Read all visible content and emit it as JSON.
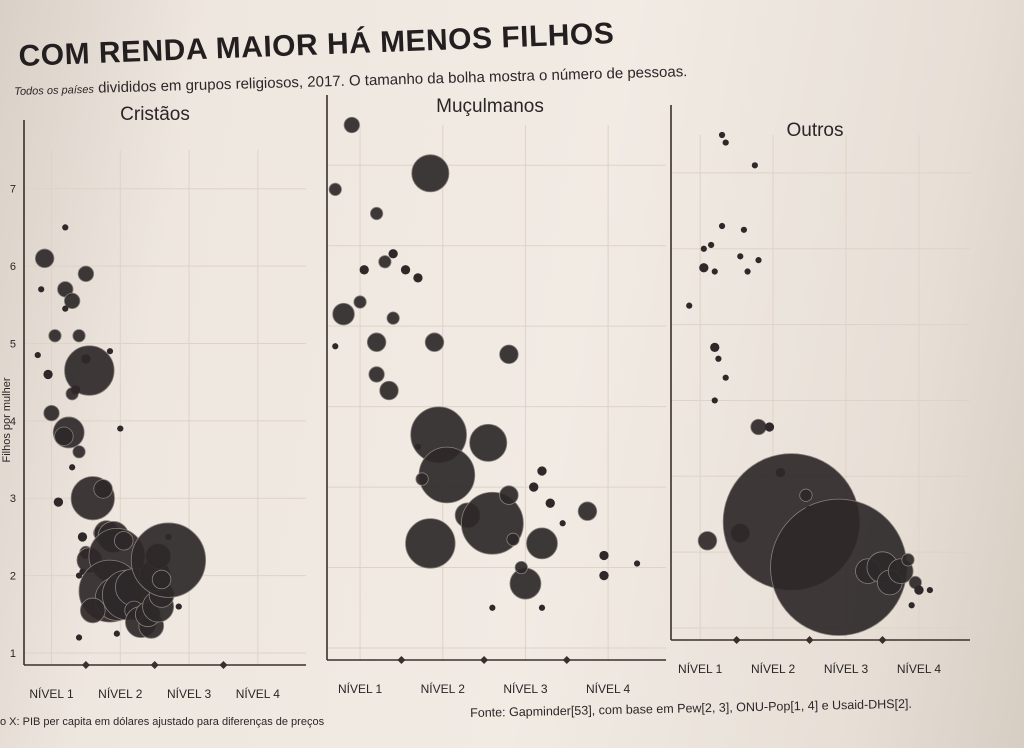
{
  "title": "COM RENDA MAIOR HÁ MENOS FILHOS",
  "subtitle_prefix": "Todos os países",
  "subtitle_rest": " divididos em grupos religiosos, 2017. O tamanho da bolha mostra o número de pessoas.",
  "footer_left": "o X: PIB per capita em dólares ajustado para diferenças de preços",
  "footer_right": "Fonte: Gapminder[53], com base em Pew[2, 3], ONU-Pop[1, 4] e Usaid-DHS[2].",
  "colors": {
    "bubble": "#2e2829",
    "axis": "#3a2f2c",
    "grid": "#ddd3c8",
    "text": "#2a2526"
  },
  "chart_data": [
    {
      "type": "scatter",
      "title": "Cristãos",
      "ylabel": "Filhos por mulher",
      "ylim": [
        1,
        7.5
      ],
      "yticks": [
        "1",
        "2",
        "3",
        "4",
        "5",
        "6",
        "7"
      ],
      "xticks": [
        "NÍVEL 1",
        "NÍVEL 2",
        "NÍVEL 3",
        "NÍVEL 4"
      ],
      "xlim": [
        0.6,
        4.7
      ],
      "points": [
        {
          "x": 0.9,
          "y": 6.1,
          "s": 3
        },
        {
          "x": 0.85,
          "y": 5.7,
          "s": 1
        },
        {
          "x": 1.2,
          "y": 6.5,
          "s": 1
        },
        {
          "x": 1.2,
          "y": 5.7,
          "s": 2.5
        },
        {
          "x": 1.3,
          "y": 5.55,
          "s": 2.5
        },
        {
          "x": 1.2,
          "y": 5.45,
          "s": 1
        },
        {
          "x": 1.5,
          "y": 5.9,
          "s": 2.5
        },
        {
          "x": 1.05,
          "y": 5.1,
          "s": 2
        },
        {
          "x": 1.4,
          "y": 5.1,
          "s": 2
        },
        {
          "x": 0.8,
          "y": 4.85,
          "s": 1
        },
        {
          "x": 0.95,
          "y": 4.6,
          "s": 1.5
        },
        {
          "x": 1.55,
          "y": 4.65,
          "s": 8
        },
        {
          "x": 1.5,
          "y": 4.8,
          "s": 1.5
        },
        {
          "x": 1.3,
          "y": 4.35,
          "s": 2
        },
        {
          "x": 1.35,
          "y": 4.4,
          "s": 1.5
        },
        {
          "x": 1.0,
          "y": 4.1,
          "s": 2.5
        },
        {
          "x": 1.25,
          "y": 3.85,
          "s": 5
        },
        {
          "x": 1.18,
          "y": 3.8,
          "s": 3
        },
        {
          "x": 1.4,
          "y": 3.6,
          "s": 2
        },
        {
          "x": 1.3,
          "y": 3.4,
          "s": 1
        },
        {
          "x": 1.85,
          "y": 4.9,
          "s": 1
        },
        {
          "x": 2.0,
          "y": 3.9,
          "s": 1
        },
        {
          "x": 1.1,
          "y": 2.95,
          "s": 1.5
        },
        {
          "x": 1.6,
          "y": 3.0,
          "s": 7
        },
        {
          "x": 1.75,
          "y": 3.12,
          "s": 3
        },
        {
          "x": 1.45,
          "y": 2.5,
          "s": 1.5
        },
        {
          "x": 1.5,
          "y": 2.3,
          "s": 2
        },
        {
          "x": 1.55,
          "y": 2.2,
          "s": 4
        },
        {
          "x": 1.45,
          "y": 2.05,
          "s": 1
        },
        {
          "x": 1.7,
          "y": 2.55,
          "s": 2
        },
        {
          "x": 1.8,
          "y": 2.55,
          "s": 4
        },
        {
          "x": 1.9,
          "y": 2.5,
          "s": 5
        },
        {
          "x": 1.95,
          "y": 2.25,
          "s": 9
        },
        {
          "x": 2.05,
          "y": 2.45,
          "s": 3
        },
        {
          "x": 1.85,
          "y": 1.8,
          "s": 10
        },
        {
          "x": 1.95,
          "y": 1.7,
          "s": 7
        },
        {
          "x": 2.1,
          "y": 1.75,
          "s": 8
        },
        {
          "x": 2.2,
          "y": 1.85,
          "s": 6
        },
        {
          "x": 1.6,
          "y": 1.55,
          "s": 4
        },
        {
          "x": 2.2,
          "y": 1.55,
          "s": 3
        },
        {
          "x": 2.3,
          "y": 1.4,
          "s": 5
        },
        {
          "x": 2.45,
          "y": 1.35,
          "s": 4
        },
        {
          "x": 2.4,
          "y": 1.5,
          "s": 4
        },
        {
          "x": 2.55,
          "y": 1.6,
          "s": 5
        },
        {
          "x": 2.6,
          "y": 1.75,
          "s": 4
        },
        {
          "x": 2.5,
          "y": 2.0,
          "s": 5
        },
        {
          "x": 2.55,
          "y": 2.25,
          "s": 4
        },
        {
          "x": 2.7,
          "y": 2.2,
          "s": 12
        },
        {
          "x": 2.6,
          "y": 1.95,
          "s": 3
        },
        {
          "x": 1.4,
          "y": 1.2,
          "s": 1
        },
        {
          "x": 1.95,
          "y": 1.25,
          "s": 1
        },
        {
          "x": 2.85,
          "y": 1.6,
          "s": 1
        },
        {
          "x": 2.7,
          "y": 2.5,
          "s": 1
        },
        {
          "x": 1.4,
          "y": 2.0,
          "s": 1
        }
      ]
    },
    {
      "type": "scatter",
      "title": "Muçulmanos",
      "ylim": [
        1,
        7.5
      ],
      "xticks": [
        "NÍVEL 1",
        "NÍVEL 2",
        "NÍVEL 3",
        "NÍVEL 4"
      ],
      "xlim": [
        0.6,
        4.7
      ],
      "points": [
        {
          "x": 0.9,
          "y": 7.5,
          "s": 2.5
        },
        {
          "x": 0.7,
          "y": 6.7,
          "s": 2
        },
        {
          "x": 1.2,
          "y": 6.4,
          "s": 2
        },
        {
          "x": 1.85,
          "y": 6.9,
          "s": 6
        },
        {
          "x": 1.05,
          "y": 5.7,
          "s": 1.5
        },
        {
          "x": 1.3,
          "y": 5.8,
          "s": 2
        },
        {
          "x": 1.4,
          "y": 5.9,
          "s": 1.5
        },
        {
          "x": 1.55,
          "y": 5.7,
          "s": 1.5
        },
        {
          "x": 1.7,
          "y": 5.6,
          "s": 1.5
        },
        {
          "x": 0.8,
          "y": 5.15,
          "s": 3.5
        },
        {
          "x": 1.0,
          "y": 5.3,
          "s": 2
        },
        {
          "x": 1.4,
          "y": 5.1,
          "s": 2
        },
        {
          "x": 1.2,
          "y": 4.8,
          "s": 3
        },
        {
          "x": 1.9,
          "y": 4.8,
          "s": 3
        },
        {
          "x": 1.2,
          "y": 4.4,
          "s": 2.5
        },
        {
          "x": 1.35,
          "y": 4.2,
          "s": 3
        },
        {
          "x": 2.8,
          "y": 4.65,
          "s": 3
        },
        {
          "x": 1.95,
          "y": 3.65,
          "s": 9
        },
        {
          "x": 2.55,
          "y": 3.55,
          "s": 6
        },
        {
          "x": 2.05,
          "y": 3.15,
          "s": 9
        },
        {
          "x": 1.75,
          "y": 3.1,
          "s": 2
        },
        {
          "x": 1.85,
          "y": 2.3,
          "s": 8
        },
        {
          "x": 2.3,
          "y": 2.65,
          "s": 4
        },
        {
          "x": 2.6,
          "y": 2.55,
          "s": 10
        },
        {
          "x": 2.8,
          "y": 2.9,
          "s": 3
        },
        {
          "x": 3.2,
          "y": 2.3,
          "s": 5
        },
        {
          "x": 2.85,
          "y": 2.35,
          "s": 2
        },
        {
          "x": 3.0,
          "y": 1.8,
          "s": 5
        },
        {
          "x": 3.1,
          "y": 3.0,
          "s": 1.5
        },
        {
          "x": 3.3,
          "y": 2.8,
          "s": 1.5
        },
        {
          "x": 3.45,
          "y": 2.55,
          "s": 1
        },
        {
          "x": 3.75,
          "y": 2.7,
          "s": 3
        },
        {
          "x": 3.95,
          "y": 2.15,
          "s": 1.5
        },
        {
          "x": 3.95,
          "y": 1.9,
          "s": 1.5
        },
        {
          "x": 2.95,
          "y": 2.0,
          "s": 2
        },
        {
          "x": 3.2,
          "y": 3.2,
          "s": 1.5
        },
        {
          "x": 4.35,
          "y": 2.05,
          "s": 1
        },
        {
          "x": 1.7,
          "y": 3.5,
          "s": 1
        },
        {
          "x": 2.6,
          "y": 1.5,
          "s": 1
        },
        {
          "x": 3.2,
          "y": 1.5,
          "s": 1
        },
        {
          "x": 0.7,
          "y": 4.75,
          "s": 1
        }
      ]
    },
    {
      "type": "scatter",
      "title": "Outros",
      "ylim": [
        1,
        7.5
      ],
      "xticks": [
        "NÍVEL 1",
        "NÍVEL 2",
        "NÍVEL 3",
        "NÍVEL 4"
      ],
      "xlim": [
        0.6,
        4.7
      ],
      "points": [
        {
          "x": 1.3,
          "y": 7.5,
          "s": 1
        },
        {
          "x": 1.35,
          "y": 7.4,
          "s": 1
        },
        {
          "x": 1.75,
          "y": 7.1,
          "s": 1
        },
        {
          "x": 1.3,
          "y": 6.3,
          "s": 1
        },
        {
          "x": 1.6,
          "y": 6.25,
          "s": 1
        },
        {
          "x": 1.05,
          "y": 6.0,
          "s": 1
        },
        {
          "x": 1.15,
          "y": 6.05,
          "s": 1
        },
        {
          "x": 1.55,
          "y": 5.9,
          "s": 1
        },
        {
          "x": 1.8,
          "y": 5.85,
          "s": 1
        },
        {
          "x": 1.05,
          "y": 5.75,
          "s": 1.5
        },
        {
          "x": 1.2,
          "y": 5.7,
          "s": 1
        },
        {
          "x": 1.65,
          "y": 5.7,
          "s": 1
        },
        {
          "x": 0.85,
          "y": 5.25,
          "s": 1
        },
        {
          "x": 1.2,
          "y": 4.7,
          "s": 1.5
        },
        {
          "x": 1.25,
          "y": 4.55,
          "s": 1
        },
        {
          "x": 1.35,
          "y": 4.3,
          "s": 1
        },
        {
          "x": 1.2,
          "y": 4.0,
          "s": 1
        },
        {
          "x": 1.8,
          "y": 3.65,
          "s": 2.5
        },
        {
          "x": 1.95,
          "y": 3.65,
          "s": 1.5
        },
        {
          "x": 1.1,
          "y": 2.15,
          "s": 3
        },
        {
          "x": 1.55,
          "y": 2.25,
          "s": 3
        },
        {
          "x": 2.25,
          "y": 2.4,
          "s": 22
        },
        {
          "x": 2.9,
          "y": 1.8,
          "s": 22
        },
        {
          "x": 3.3,
          "y": 1.75,
          "s": 4
        },
        {
          "x": 3.5,
          "y": 1.8,
          "s": 5
        },
        {
          "x": 3.6,
          "y": 1.6,
          "s": 4
        },
        {
          "x": 3.75,
          "y": 1.75,
          "s": 4
        },
        {
          "x": 3.85,
          "y": 1.9,
          "s": 2
        },
        {
          "x": 2.45,
          "y": 2.75,
          "s": 2
        },
        {
          "x": 2.1,
          "y": 3.05,
          "s": 1.5
        },
        {
          "x": 2.5,
          "y": 2.55,
          "s": 1.5
        },
        {
          "x": 3.95,
          "y": 1.6,
          "s": 2
        },
        {
          "x": 4.0,
          "y": 1.5,
          "s": 1.5
        },
        {
          "x": 3.9,
          "y": 1.3,
          "s": 1
        },
        {
          "x": 4.15,
          "y": 1.5,
          "s": 1
        }
      ]
    }
  ]
}
